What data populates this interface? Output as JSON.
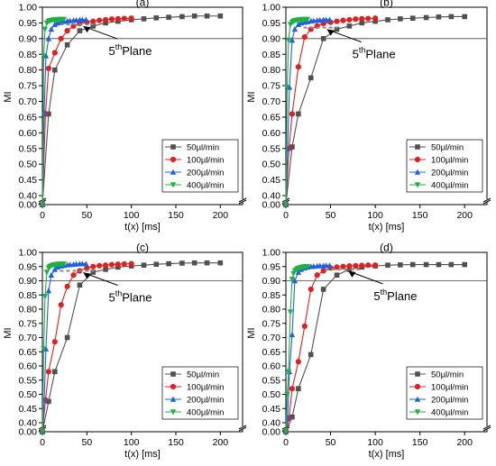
{
  "legend_position": "bottom-right",
  "annotation": {
    "base": "5",
    "sup": "th",
    "rest": "Plane"
  },
  "chart_data": [
    {
      "type": "line",
      "title": "(a)",
      "xlabel": "t(x) [ms]",
      "ylabel": "MI",
      "xlim": [
        0,
        225
      ],
      "ylim": [
        0.4,
        1.0
      ],
      "y_axis_break": true,
      "xticks": [
        0,
        50,
        100,
        150,
        200
      ],
      "yticks": [
        0.0,
        0.4,
        0.45,
        0.5,
        0.55,
        0.6,
        0.65,
        0.7,
        0.75,
        0.8,
        0.85,
        0.9,
        0.95,
        1.0
      ],
      "ytick_labels": [
        "0.00",
        "0.40",
        "0.45",
        "0.50",
        "0.55",
        "0.60",
        "0.65",
        "0.70",
        "0.75",
        "0.80",
        "0.85",
        "0.90",
        "0.95",
        "1.00"
      ],
      "reference_line": 0.9,
      "annotation_point": {
        "x": 40,
        "y": 0.945
      },
      "series": [
        {
          "name": "50µl/min",
          "color": "#505050",
          "marker": "square",
          "x": [
            0,
            7,
            14,
            28,
            42,
            57,
            71,
            85,
            100,
            114,
            128,
            142,
            157,
            171,
            185,
            200
          ],
          "y": [
            0.0,
            0.66,
            0.8,
            0.88,
            0.925,
            0.94,
            0.95,
            0.955,
            0.96,
            0.963,
            0.966,
            0.968,
            0.97,
            0.972,
            0.972,
            0.972
          ]
        },
        {
          "name": "100µl/min",
          "color": "#e02020",
          "marker": "circle",
          "x": [
            0,
            3.5,
            7,
            14,
            21,
            28,
            35,
            42,
            50,
            57,
            64,
            71,
            78,
            85,
            92,
            100
          ],
          "y": [
            0.0,
            0.66,
            0.805,
            0.855,
            0.9,
            0.925,
            0.94,
            0.948,
            0.952,
            0.955,
            0.958,
            0.96,
            0.962,
            0.963,
            0.964,
            0.965
          ]
        },
        {
          "name": "200µl/min",
          "color": "#2060e0",
          "marker": "triangle",
          "x": [
            0,
            2,
            4,
            7,
            10,
            14,
            17,
            21,
            24,
            28,
            31,
            35,
            38,
            42,
            45,
            49
          ],
          "y": [
            0.0,
            0.665,
            0.845,
            0.9,
            0.93,
            0.945,
            0.95,
            0.952,
            0.955,
            0.956,
            0.957,
            0.958,
            0.959,
            0.96,
            0.96,
            0.96
          ]
        },
        {
          "name": "400µl/min",
          "color": "#20b040",
          "marker": "triangle-down",
          "x": [
            0,
            1.5,
            3,
            5,
            7,
            8.5,
            10,
            12,
            13.5,
            15,
            17,
            18.5,
            20,
            22,
            24
          ],
          "y": [
            0.0,
            0.845,
            0.93,
            0.95,
            0.955,
            0.957,
            0.958,
            0.959,
            0.96,
            0.96,
            0.96,
            0.961,
            0.961,
            0.961,
            0.961
          ]
        }
      ]
    },
    {
      "type": "line",
      "title": "(b)",
      "xlabel": "t(x) [ms]",
      "ylabel": "MI",
      "xlim": [
        0,
        225
      ],
      "ylim": [
        0.4,
        1.0
      ],
      "y_axis_break": true,
      "xticks": [
        0,
        50,
        100,
        150,
        200
      ],
      "yticks": [
        0.0,
        0.4,
        0.45,
        0.5,
        0.55,
        0.6,
        0.65,
        0.7,
        0.75,
        0.8,
        0.85,
        0.9,
        0.95,
        1.0
      ],
      "ytick_labels": [
        "0.00",
        "0.40",
        "0.45",
        "0.50",
        "0.55",
        "0.60",
        "0.65",
        "0.70",
        "0.75",
        "0.80",
        "0.85",
        "0.90",
        "0.95",
        "1.00"
      ],
      "reference_line": 0.9,
      "annotation_point": {
        "x": 40,
        "y": 0.935
      },
      "series": [
        {
          "name": "50µl/min",
          "color": "#505050",
          "marker": "square",
          "x": [
            0,
            7,
            14,
            28,
            42,
            57,
            71,
            85,
            100,
            114,
            128,
            142,
            157,
            171,
            185,
            200
          ],
          "y": [
            0.0,
            0.555,
            0.66,
            0.775,
            0.9,
            0.93,
            0.94,
            0.95,
            0.955,
            0.96,
            0.963,
            0.965,
            0.967,
            0.969,
            0.97,
            0.97
          ]
        },
        {
          "name": "100µl/min",
          "color": "#e02020",
          "marker": "circle",
          "x": [
            0,
            3.5,
            7,
            14,
            21,
            28,
            35,
            42,
            50,
            57,
            64,
            71,
            78,
            85,
            92,
            100
          ],
          "y": [
            0.0,
            0.55,
            0.66,
            0.81,
            0.905,
            0.93,
            0.94,
            0.948,
            0.952,
            0.955,
            0.958,
            0.96,
            0.962,
            0.963,
            0.964,
            0.965
          ]
        },
        {
          "name": "200µl/min",
          "color": "#2060e0",
          "marker": "triangle",
          "x": [
            0,
            2,
            4,
            7,
            10,
            14,
            17,
            21,
            24,
            28,
            31,
            35,
            38,
            42,
            45,
            49
          ],
          "y": [
            0.0,
            0.55,
            0.745,
            0.895,
            0.93,
            0.945,
            0.95,
            0.952,
            0.954,
            0.956,
            0.957,
            0.958,
            0.959,
            0.96,
            0.96,
            0.96
          ]
        },
        {
          "name": "400µl/min",
          "color": "#20b040",
          "marker": "triangle-down",
          "x": [
            0,
            1.5,
            3,
            5,
            7,
            8.5,
            10,
            12,
            13.5,
            15,
            17,
            18.5,
            20,
            22,
            24
          ],
          "y": [
            0.0,
            0.745,
            0.895,
            0.945,
            0.952,
            0.955,
            0.957,
            0.958,
            0.959,
            0.96,
            0.96,
            0.961,
            0.961,
            0.961,
            0.961
          ]
        }
      ]
    },
    {
      "type": "line",
      "title": "(c)",
      "xlabel": "t(x) [ms]",
      "ylabel": "MI",
      "xlim": [
        0,
        225
      ],
      "ylim": [
        0.4,
        1.0
      ],
      "y_axis_break": true,
      "xticks": [
        0,
        50,
        100,
        150,
        200
      ],
      "yticks": [
        0.0,
        0.4,
        0.45,
        0.5,
        0.55,
        0.6,
        0.65,
        0.7,
        0.75,
        0.8,
        0.85,
        0.9,
        0.95,
        1.0
      ],
      "ytick_labels": [
        "0.00",
        "0.40",
        "0.45",
        "0.50",
        "0.55",
        "0.60",
        "0.65",
        "0.70",
        "0.75",
        "0.80",
        "0.85",
        "0.90",
        "0.95",
        "1.00"
      ],
      "reference_line": 0.9,
      "annotation_point": {
        "x": 40,
        "y": 0.935
      },
      "series": [
        {
          "name": "50µl/min",
          "color": "#505050",
          "marker": "square",
          "x": [
            0,
            7,
            14,
            28,
            42,
            57,
            71,
            85,
            100,
            114,
            128,
            142,
            157,
            171,
            185,
            200
          ],
          "y": [
            0.0,
            0.475,
            0.58,
            0.7,
            0.885,
            0.93,
            0.94,
            0.948,
            0.952,
            0.955,
            0.958,
            0.96,
            0.962,
            0.963,
            0.963,
            0.963
          ]
        },
        {
          "name": "100µl/min",
          "color": "#e02020",
          "marker": "circle",
          "x": [
            0,
            3.5,
            7,
            14,
            21,
            28,
            35,
            42,
            50,
            57,
            64,
            71,
            78,
            85,
            92,
            100
          ],
          "y": [
            0.0,
            0.48,
            0.58,
            0.685,
            0.815,
            0.88,
            0.92,
            0.935,
            0.945,
            0.95,
            0.953,
            0.955,
            0.957,
            0.958,
            0.959,
            0.96
          ]
        },
        {
          "name": "200µl/min",
          "color": "#2060e0",
          "marker": "triangle",
          "x": [
            0,
            2,
            4,
            7,
            10,
            14,
            17,
            21,
            24,
            28,
            31,
            35,
            38,
            42,
            45,
            49
          ],
          "y": [
            0.0,
            0.48,
            0.66,
            0.865,
            0.92,
            0.94,
            0.948,
            0.952,
            0.954,
            0.956,
            0.957,
            0.958,
            0.959,
            0.96,
            0.96,
            0.96
          ]
        },
        {
          "name": "400µl/min",
          "color": "#20b040",
          "marker": "triangle-down",
          "x": [
            0,
            1.5,
            3,
            5,
            7,
            8.5,
            10,
            12,
            13.5,
            15,
            17,
            18.5,
            20,
            22,
            24
          ],
          "y": [
            0.0,
            0.66,
            0.845,
            0.93,
            0.945,
            0.95,
            0.953,
            0.955,
            0.956,
            0.957,
            0.958,
            0.958,
            0.959,
            0.959,
            0.959
          ]
        }
      ]
    },
    {
      "type": "line",
      "title": "(d)",
      "xlabel": "t(x) [ms]",
      "ylabel": "MI",
      "xlim": [
        0,
        225
      ],
      "ylim": [
        0.4,
        1.0
      ],
      "y_axis_break": true,
      "xticks": [
        0,
        50,
        100,
        150,
        200
      ],
      "yticks": [
        0.0,
        0.4,
        0.45,
        0.5,
        0.55,
        0.6,
        0.65,
        0.7,
        0.75,
        0.8,
        0.85,
        0.9,
        0.95,
        1.0
      ],
      "ytick_labels": [
        "0.00",
        "0.40",
        "0.45",
        "0.50",
        "0.55",
        "0.60",
        "0.65",
        "0.70",
        "0.75",
        "0.80",
        "0.85",
        "0.90",
        "0.95",
        "1.00"
      ],
      "reference_line": 0.9,
      "annotation_point": {
        "x": 64,
        "y": 0.94
      },
      "series": [
        {
          "name": "50µl/min",
          "color": "#505050",
          "marker": "square",
          "x": [
            0,
            7,
            14,
            28,
            42,
            57,
            71,
            85,
            100,
            114,
            128,
            142,
            157,
            171,
            185,
            200
          ],
          "y": [
            0.0,
            0.42,
            0.52,
            0.64,
            0.87,
            0.92,
            0.94,
            0.948,
            0.952,
            0.955,
            0.956,
            0.957,
            0.957,
            0.957,
            0.957,
            0.957
          ]
        },
        {
          "name": "100µl/min",
          "color": "#e02020",
          "marker": "circle",
          "x": [
            0,
            3.5,
            7,
            14,
            21,
            28,
            35,
            42,
            50,
            57,
            64,
            71,
            78,
            85,
            92,
            100
          ],
          "y": [
            0.0,
            0.415,
            0.52,
            0.615,
            0.74,
            0.87,
            0.92,
            0.935,
            0.945,
            0.948,
            0.95,
            0.952,
            0.953,
            0.954,
            0.955,
            0.955
          ]
        },
        {
          "name": "200µl/min",
          "color": "#2060e0",
          "marker": "triangle",
          "x": [
            0,
            2,
            4,
            7,
            10,
            14,
            17,
            21,
            24,
            28,
            31,
            35,
            38,
            42,
            45,
            49
          ],
          "y": [
            0.0,
            0.42,
            0.58,
            0.71,
            0.9,
            0.93,
            0.94,
            0.945,
            0.948,
            0.95,
            0.951,
            0.952,
            0.953,
            0.953,
            0.954,
            0.954
          ]
        },
        {
          "name": "400µl/min",
          "color": "#20b040",
          "marker": "triangle-down",
          "x": [
            0,
            1.5,
            3,
            5,
            7,
            8.5,
            10,
            12,
            13.5,
            15,
            17,
            18.5,
            20,
            22,
            24
          ],
          "y": [
            0.0,
            0.5,
            0.58,
            0.79,
            0.905,
            0.925,
            0.935,
            0.94,
            0.943,
            0.945,
            0.947,
            0.948,
            0.949,
            0.95,
            0.95
          ]
        }
      ]
    }
  ]
}
